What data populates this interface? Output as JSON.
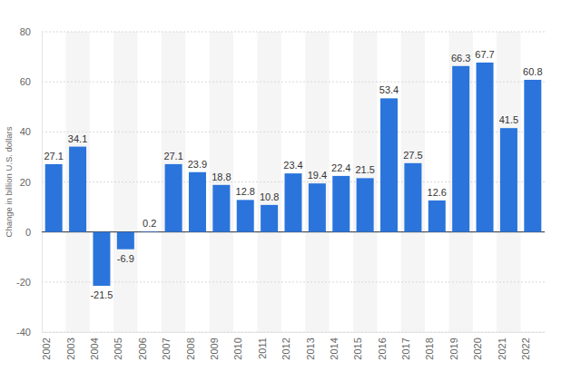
{
  "chart_data": {
    "type": "bar",
    "y_label": "Change in billion U.S. dollars",
    "categories": [
      "2002",
      "2003",
      "2004",
      "2005",
      "2006",
      "2007",
      "2008",
      "2009",
      "2010",
      "2011",
      "2012",
      "2013",
      "2014",
      "2015",
      "2016",
      "2017",
      "2018",
      "2019",
      "2020",
      "2021",
      "2022"
    ],
    "values": [
      27.1,
      34.1,
      -21.5,
      -6.9,
      0.2,
      27.1,
      23.9,
      18.8,
      12.8,
      10.8,
      23.4,
      19.4,
      22.4,
      21.5,
      53.4,
      27.5,
      12.6,
      66.3,
      67.7,
      41.5,
      60.8
    ],
    "color": "#2a74dc",
    "ylim": [
      -40,
      80
    ],
    "yticks": [
      -40,
      -20,
      0,
      20,
      40,
      60,
      80
    ],
    "grid": true,
    "data_labels": true
  }
}
